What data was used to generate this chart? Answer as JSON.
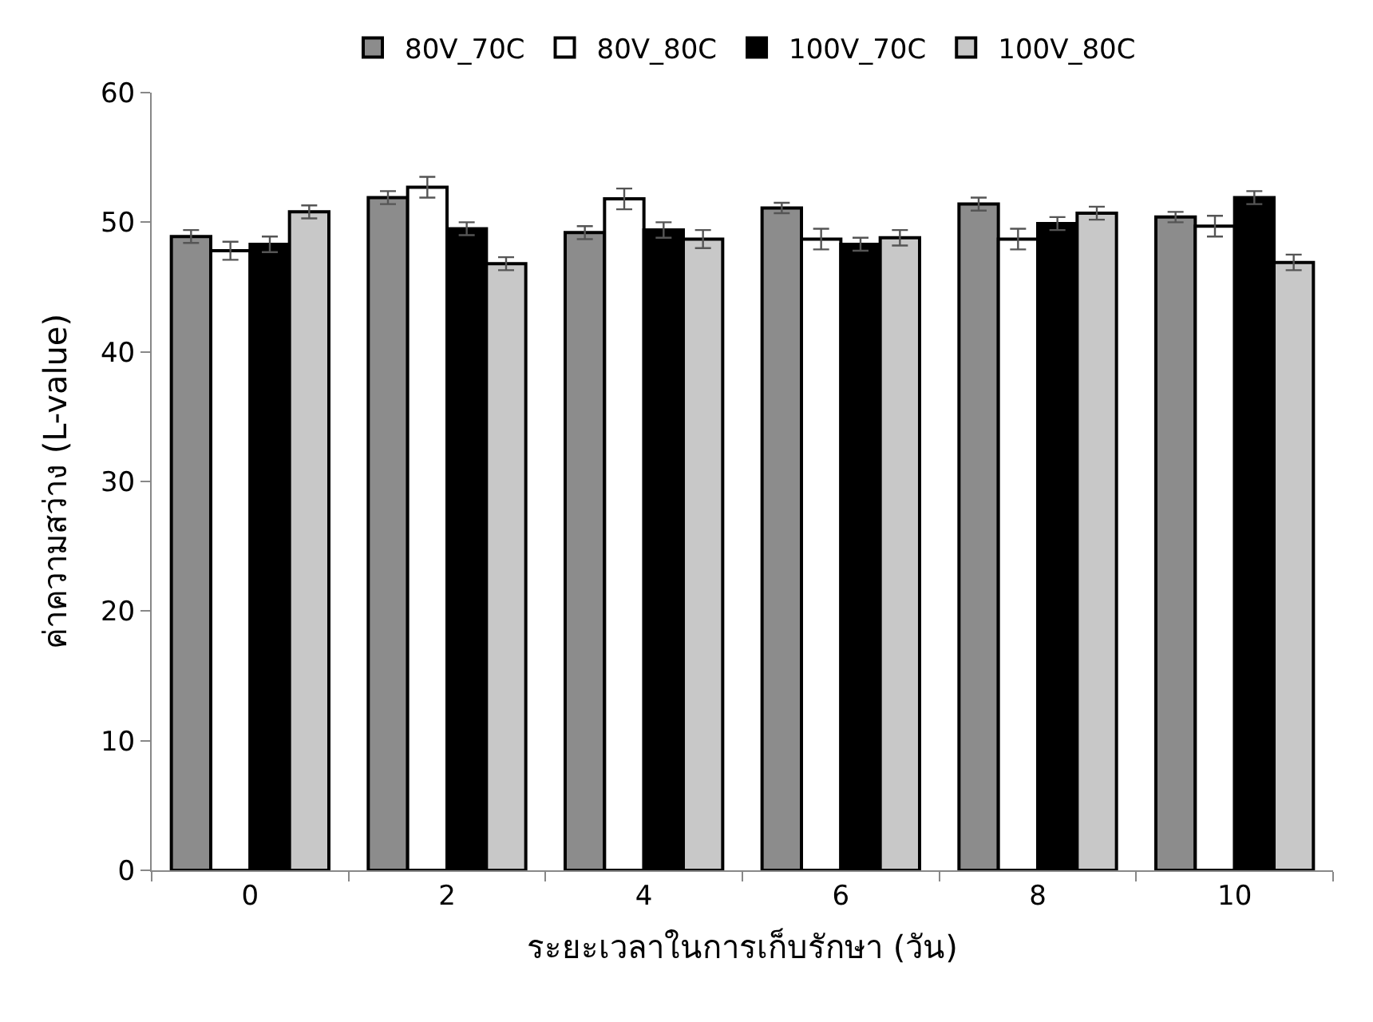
{
  "chart_data": {
    "type": "bar",
    "xlabel": "ระยะเวลาในการเก็บรักษา (วัน)",
    "ylabel": "ค่าความสว่าง (L-value)",
    "categories": [
      "0",
      "2",
      "4",
      "6",
      "8",
      "10"
    ],
    "series": [
      {
        "name": "80V_70C",
        "color": "#8c8c8c",
        "values": [
          48.9,
          51.9,
          49.2,
          51.1,
          51.4,
          50.4
        ],
        "errors": [
          0.5,
          0.5,
          0.5,
          0.4,
          0.5,
          0.4
        ]
      },
      {
        "name": "80V_80C",
        "color": "#ffffff",
        "values": [
          47.8,
          52.7,
          51.8,
          48.7,
          48.7,
          49.7
        ],
        "errors": [
          0.7,
          0.8,
          0.8,
          0.8,
          0.8,
          0.8
        ]
      },
      {
        "name": "100V_70C",
        "color": "#000000",
        "values": [
          48.3,
          49.5,
          49.4,
          48.3,
          49.9,
          51.9
        ],
        "errors": [
          0.6,
          0.5,
          0.6,
          0.5,
          0.5,
          0.5
        ]
      },
      {
        "name": "100V_80C",
        "color": "#c8c8c8",
        "values": [
          50.8,
          46.8,
          48.7,
          48.8,
          50.7,
          46.9
        ],
        "errors": [
          0.5,
          0.5,
          0.7,
          0.6,
          0.5,
          0.6
        ]
      }
    ],
    "ylim": [
      0,
      60
    ],
    "yticks": [
      0,
      10,
      20,
      30,
      40,
      50,
      60
    ],
    "legend": "top"
  }
}
